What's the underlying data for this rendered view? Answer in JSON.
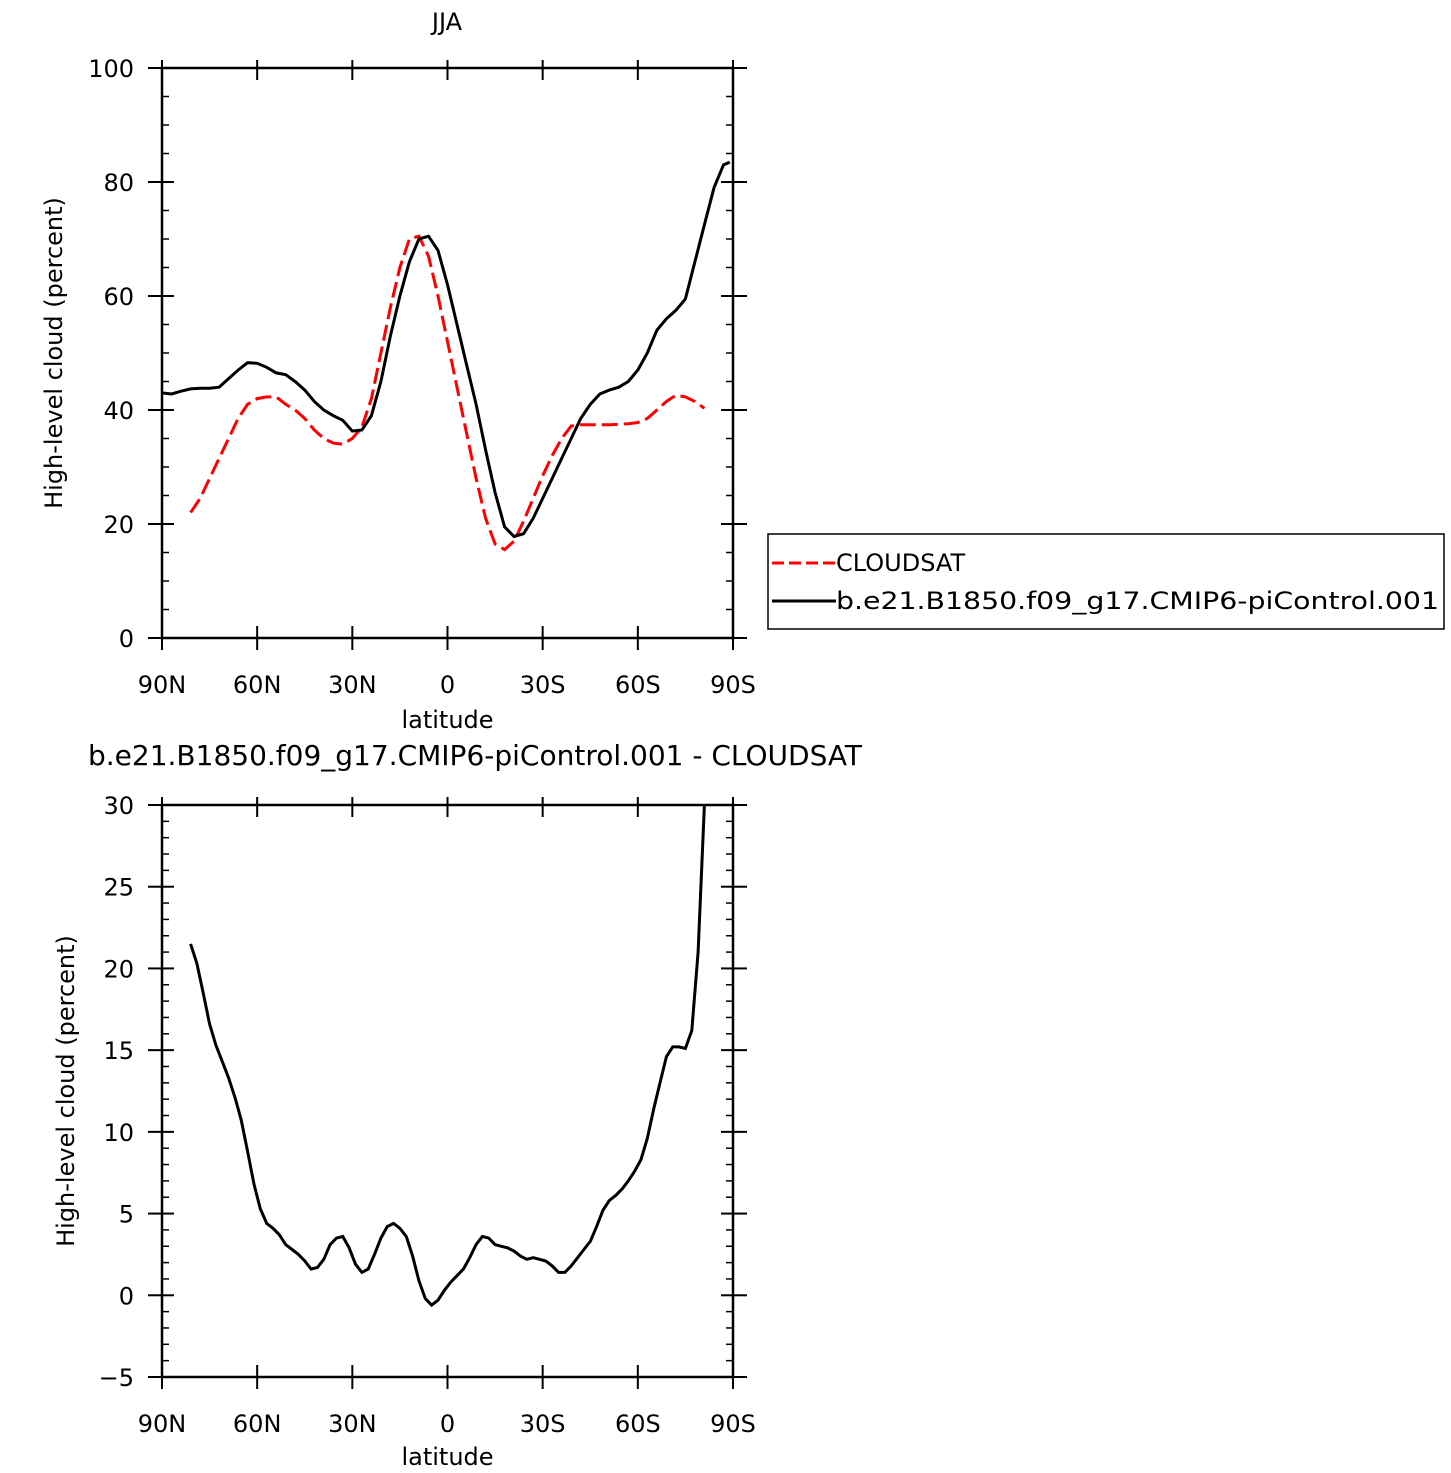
{
  "chart_data": [
    {
      "type": "line",
      "title": "JJA",
      "xlabel": "latitude",
      "ylabel": "High-level cloud (percent)",
      "xlim": [
        90,
        -90
      ],
      "ylim": [
        0,
        100
      ],
      "xticks": [
        90,
        60,
        30,
        0,
        -30,
        -60,
        -90
      ],
      "xtick_labels": [
        "90N",
        "60N",
        "30N",
        "0",
        "30S",
        "60S",
        "90S"
      ],
      "yticks": [
        0,
        20,
        40,
        60,
        80,
        100
      ],
      "ytick_labels": [
        "0",
        "20",
        "40",
        "60",
        "80",
        "100"
      ],
      "legend_position": "right",
      "series": [
        {
          "name": "CLOUDSAT",
          "color": "#ff0000",
          "dash": "dashed",
          "x": [
            81,
            78,
            75,
            72,
            69,
            66,
            63,
            60,
            57,
            54,
            51,
            48,
            45,
            42,
            39,
            36,
            33,
            30,
            27,
            24,
            21,
            18,
            15,
            12,
            9,
            6,
            3,
            0,
            -3,
            -6,
            -9,
            -12,
            -15,
            -18,
            -21,
            -24,
            -27,
            -30,
            -33,
            -36,
            -39,
            -42,
            -45,
            -48,
            -51,
            -54,
            -57,
            -60,
            -63,
            -66,
            -69,
            -72,
            -75,
            -78,
            -81
          ],
          "y": [
            22.0,
            24.5,
            28.0,
            31.5,
            35.0,
            38.5,
            41.0,
            42.0,
            42.3,
            42.3,
            41.0,
            40.0,
            38.5,
            36.5,
            35.0,
            34.2,
            34.0,
            35.0,
            37.0,
            42.0,
            50.0,
            58.0,
            65.0,
            70.0,
            70.5,
            67.0,
            60.0,
            52.0,
            44.0,
            36.0,
            28.0,
            21.0,
            16.5,
            15.5,
            17.0,
            20.5,
            24.5,
            28.5,
            32.0,
            35.0,
            37.2,
            37.4,
            37.4,
            37.4,
            37.4,
            37.5,
            37.6,
            37.8,
            38.5,
            40.0,
            41.5,
            42.6,
            42.3,
            41.5,
            40.3
          ]
        },
        {
          "name": "b.e21.B1850.f09_g17.CMIP6-piControl.001",
          "color": "#000000",
          "dash": "solid",
          "x": [
            90,
            87,
            84,
            81,
            78,
            75,
            72,
            69,
            66,
            63,
            60,
            57,
            54,
            51,
            48,
            45,
            42,
            39,
            36,
            33,
            30,
            27,
            24,
            21,
            18,
            15,
            12,
            9,
            6,
            3,
            0,
            -3,
            -6,
            -9,
            -12,
            -15,
            -18,
            -21,
            -24,
            -27,
            -30,
            -33,
            -36,
            -39,
            -42,
            -45,
            -48,
            -51,
            -54,
            -57,
            -60,
            -63,
            -66,
            -69,
            -72,
            -75,
            -78,
            -81,
            -84,
            -87,
            -89
          ],
          "y": [
            43.0,
            42.8,
            43.3,
            43.7,
            43.8,
            43.8,
            44.0,
            45.5,
            47.0,
            48.3,
            48.2,
            47.5,
            46.5,
            46.2,
            45.0,
            43.5,
            41.5,
            40.0,
            39.0,
            38.2,
            36.3,
            36.5,
            39.0,
            45.0,
            53.0,
            60.0,
            66.0,
            70.0,
            70.5,
            68.0,
            62.0,
            55.0,
            48.0,
            41.0,
            33.0,
            25.5,
            19.5,
            17.8,
            18.3,
            21.0,
            24.5,
            28.0,
            31.5,
            35.0,
            38.5,
            41.0,
            42.8,
            43.5,
            44.0,
            45.0,
            47.0,
            50.0,
            54.0,
            56.0,
            57.5,
            59.5,
            66.0,
            72.5,
            79.0,
            83.0,
            83.5
          ]
        }
      ]
    },
    {
      "type": "line",
      "title": "b.e21.B1850.f09_g17.CMIP6-piControl.001 - CLOUDSAT",
      "xlabel": "latitude",
      "ylabel": "High-level cloud (percent)",
      "xlim": [
        90,
        -90
      ],
      "ylim": [
        -5,
        30
      ],
      "xticks": [
        90,
        60,
        30,
        0,
        -30,
        -60,
        -90
      ],
      "xtick_labels": [
        "90N",
        "60N",
        "30N",
        "0",
        "30S",
        "60S",
        "90S"
      ],
      "yticks": [
        -5,
        0,
        5,
        10,
        15,
        20,
        25,
        30
      ],
      "ytick_labels": [
        "−5",
        "0",
        "5",
        "10",
        "15",
        "20",
        "25",
        "30"
      ],
      "series": [
        {
          "color": "#000000",
          "dash": "solid",
          "x": [
            81,
            79,
            77,
            75,
            73,
            71,
            69,
            67,
            65,
            63,
            61,
            59,
            57,
            55,
            53,
            51,
            49,
            47,
            45,
            43,
            41,
            39,
            37,
            35,
            33,
            31,
            29,
            27,
            25,
            23,
            21,
            19,
            17,
            15,
            13,
            11,
            9,
            7,
            5,
            3,
            1,
            -1,
            -3,
            -5,
            -7,
            -9,
            -11,
            -13,
            -15,
            -17,
            -19,
            -21,
            -23,
            -25,
            -27,
            -29,
            -31,
            -33,
            -35,
            -37,
            -39,
            -41,
            -43,
            -45,
            -47,
            -49,
            -51,
            -53,
            -55,
            -57,
            -59,
            -61,
            -63,
            -65,
            -67,
            -69,
            -71,
            -73,
            -75,
            -77,
            -79,
            -81
          ],
          "y": [
            21.5,
            20.3,
            18.5,
            16.6,
            15.3,
            14.3,
            13.3,
            12.1,
            10.7,
            8.8,
            6.8,
            5.3,
            4.4,
            4.1,
            3.7,
            3.1,
            2.8,
            2.5,
            2.1,
            1.6,
            1.7,
            2.2,
            3.1,
            3.5,
            3.6,
            2.9,
            1.9,
            1.4,
            1.6,
            2.5,
            3.5,
            4.2,
            4.4,
            4.1,
            3.6,
            2.4,
            0.9,
            -0.2,
            -0.6,
            -0.3,
            0.3,
            0.8,
            1.2,
            1.6,
            2.3,
            3.1,
            3.6,
            3.5,
            3.1,
            3.0,
            2.9,
            2.7,
            2.4,
            2.2,
            2.3,
            2.2,
            2.1,
            1.8,
            1.4,
            1.4,
            1.8,
            2.3,
            2.8,
            3.3,
            4.2,
            5.2,
            5.8,
            6.1,
            6.5,
            7.0,
            7.6,
            8.3,
            9.6,
            11.4,
            13.0,
            14.6,
            15.2,
            15.2,
            15.1,
            16.2,
            21.0,
            30.0
          ]
        }
      ]
    }
  ]
}
